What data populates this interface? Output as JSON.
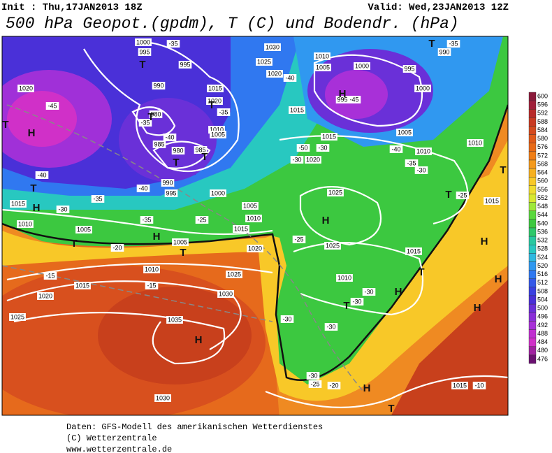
{
  "header": {
    "init": "Init : Thu,17JAN2013 18Z",
    "valid": "Valid: Wed,23JAN2013 12Z",
    "title": "500 hPa Geopot.(gpdm), T (C) und Bodendr. (hPa)"
  },
  "colorbar": {
    "levels": [
      600,
      596,
      592,
      588,
      584,
      580,
      576,
      572,
      568,
      564,
      560,
      556,
      552,
      548,
      544,
      540,
      536,
      532,
      528,
      524,
      520,
      516,
      512,
      508,
      504,
      500,
      496,
      492,
      488,
      484,
      480,
      476
    ],
    "colors": [
      "#8b1a3a",
      "#a0203a",
      "#b82a2a",
      "#c83a22",
      "#d44a1e",
      "#e05a1a",
      "#e86a18",
      "#f07e16",
      "#f49a1c",
      "#f6b020",
      "#f8c828",
      "#f0dc30",
      "#d8e830",
      "#9ee83a",
      "#5ad83e",
      "#3cc840",
      "#2ec86a",
      "#28c8a0",
      "#28c8c0",
      "#30b8e0",
      "#3098f0",
      "#3078f0",
      "#3458e8",
      "#3a40e0",
      "#4a30d8",
      "#6a30d8",
      "#8a30d8",
      "#a830d8",
      "#c030d0",
      "#d030c8",
      "#a020a0",
      "#6a1070"
    ]
  },
  "map": {
    "isobars": [
      "1000",
      "995",
      "995",
      "990",
      "980",
      "985",
      "980",
      "985",
      "990",
      "995",
      "1000",
      "1005",
      "1010",
      "1015",
      "1020",
      "1005",
      "1010",
      "1015",
      "1020",
      "1025",
      "1030",
      "1035",
      "1030",
      "1025",
      "1020",
      "1015",
      "1010",
      "1005",
      "1030",
      "1025",
      "1020",
      "1015",
      "1020",
      "1010",
      "1005",
      "1015",
      "1015",
      "1020",
      "1025",
      "1025",
      "1010",
      "1015",
      "1010",
      "1005",
      "1000",
      "995",
      "1000",
      "1010",
      "1005",
      "990",
      "995",
      "1010",
      "1015",
      "1015"
    ],
    "temperatures": [
      "-45",
      "-40",
      "-40",
      "-35",
      "-30",
      "-35",
      "-25",
      "-20",
      "-15",
      "-15",
      "-40",
      "-35",
      "-35",
      "-35",
      "-40",
      "-50",
      "-30",
      "-30",
      "-25",
      "-35",
      "-30",
      "-40",
      "-25",
      "-30",
      "-30",
      "-30",
      "-30",
      "-30",
      "-25",
      "-20",
      "-10",
      "-35",
      "-45"
    ],
    "centers": [
      "T",
      "T",
      "T",
      "T",
      "T",
      "H",
      "T",
      "H",
      "T",
      "H",
      "T",
      "H",
      "H",
      "H",
      "T",
      "T",
      "H",
      "H",
      "H",
      "T",
      "T",
      "H",
      "T",
      "H",
      "T",
      "T"
    ]
  },
  "footer": [
    "Daten: GFS-Modell des amerikanischen Wetterdienstes",
    "(C) Wetterzentrale",
    "www.wetterzentrale.de"
  ]
}
